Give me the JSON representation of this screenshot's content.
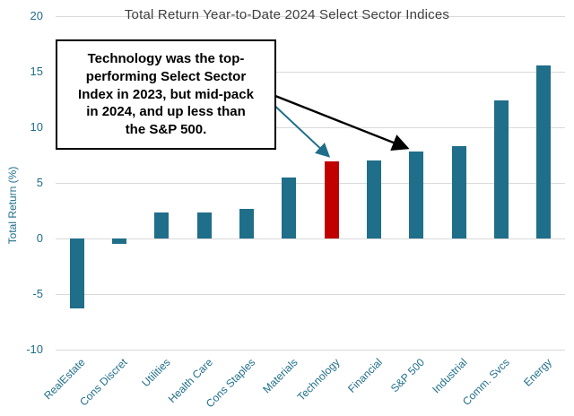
{
  "chart_data": {
    "type": "bar",
    "title": "Total Return Year-to-Date 2024 Select Sector Indices",
    "xlabel": "",
    "ylabel": "Total Return (%)",
    "ylim": [
      -10,
      20
    ],
    "yticks": [
      -10,
      -5,
      0,
      5,
      10,
      15,
      20
    ],
    "grid": true,
    "legend": false,
    "categories": [
      "RealEstate",
      "Cons Discret",
      "Utilities",
      "Health Care",
      "Cons Staples",
      "Materials",
      "Technology",
      "Financial",
      "S&P 500",
      "Industrial",
      "Comm. Svcs",
      "Energy"
    ],
    "values": [
      -6.3,
      -0.5,
      2.3,
      2.3,
      2.7,
      5.5,
      6.9,
      7.0,
      7.8,
      8.3,
      12.4,
      15.6
    ],
    "bar_colors": {
      "default": "#1F6E8A",
      "highlight": "#C00000"
    },
    "highlight_category": "Technology",
    "annotation": {
      "text": "Technology was the top-\nperforming Select Sector\nIndex in 2023, but mid-pack\nin 2024,  and up less than\nthe S&P 500.",
      "arrows": [
        {
          "color": "#1F6E8A",
          "target": "Technology"
        },
        {
          "color": "#000000",
          "target": "S&P 500"
        }
      ]
    }
  }
}
